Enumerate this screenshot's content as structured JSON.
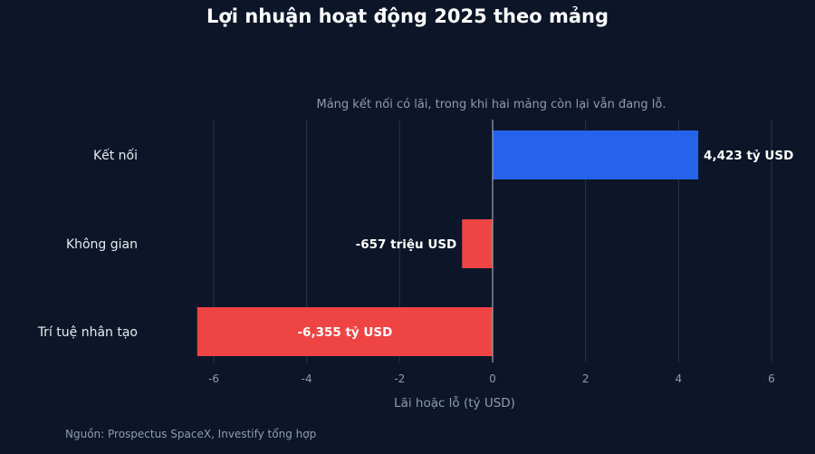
{
  "title": "Lợi nhuận hoạt động 2025 theo mảng",
  "subtitle": "Mảng kết nối có lãi, trong khi hai mảng còn lại vẫn đang lỗ.",
  "source": "Nguồn: Prospectus SpaceX, Investify tổng hợp",
  "colors": {
    "positive": "#2563eb",
    "negative": "#ef4444",
    "background": "#0c1628"
  },
  "chart_data": {
    "type": "bar",
    "orientation": "horizontal",
    "categories": [
      "Kết nối",
      "Không gian",
      "Trí tuệ nhân tạo"
    ],
    "values": [
      4.423,
      -0.657,
      -6.355
    ],
    "data_labels": [
      "4,423 tỷ USD",
      "-657 triệu USD",
      "-6,355 tỷ USD"
    ],
    "xlabel": "Lãi hoặc lỗ (tỷ USD)",
    "ylabel": "",
    "xlim": [
      -6,
      6
    ],
    "xticks": [
      -6,
      -4,
      -2,
      0,
      2,
      4,
      6
    ],
    "grid": true
  }
}
